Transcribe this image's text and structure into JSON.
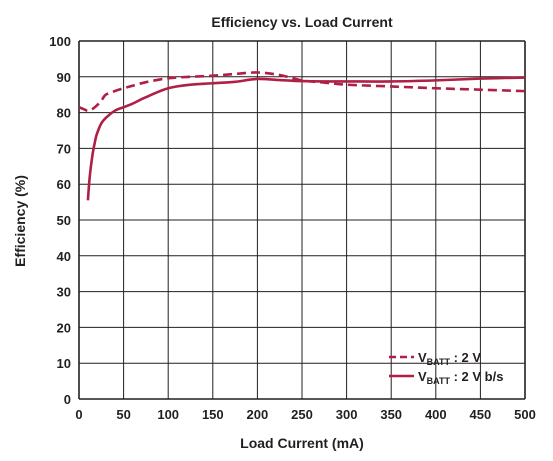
{
  "chart_data": {
    "type": "line",
    "title": "Efficiency vs. Load Current",
    "xlabel": "Load Current (mA)",
    "ylabel": "Efficiency (%)",
    "xlim": [
      0,
      500
    ],
    "ylim": [
      0,
      100
    ],
    "xticks": [
      0,
      50,
      100,
      150,
      200,
      250,
      300,
      350,
      400,
      450,
      500
    ],
    "yticks": [
      0,
      10,
      20,
      30,
      40,
      50,
      60,
      70,
      80,
      90,
      100
    ],
    "grid": true,
    "legend_position": "bottom-right",
    "colors": {
      "series": "#b01f46",
      "grid": "#231f20",
      "text": "#231f20"
    },
    "series": [
      {
        "name": "VBATT : 2 V",
        "legend_main": "V",
        "legend_sub": "BATT",
        "legend_suffix": " : 2 V",
        "style": "dashed",
        "x": [
          0,
          5,
          10,
          15,
          20,
          25,
          30,
          40,
          50,
          60,
          75,
          100,
          125,
          150,
          175,
          200,
          225,
          250,
          275,
          300,
          350,
          400,
          450,
          500
        ],
        "y": [
          81.5,
          81,
          80.5,
          81,
          82,
          83.3,
          85,
          86,
          86.8,
          87.5,
          88.5,
          89.6,
          90,
          90.3,
          90.8,
          91.2,
          90.5,
          89,
          88.4,
          87.8,
          87.3,
          86.8,
          86.4,
          86
        ]
      },
      {
        "name": "VBATT : 2 V b/s",
        "legend_main": "V",
        "legend_sub": "BATT",
        "legend_suffix": " : 2 V b/s",
        "style": "solid",
        "x": [
          10,
          12,
          15,
          18,
          20,
          25,
          30,
          40,
          50,
          60,
          75,
          100,
          125,
          150,
          175,
          200,
          225,
          250,
          275,
          300,
          350,
          400,
          450,
          500
        ],
        "y": [
          55.5,
          62,
          68,
          72,
          74,
          77,
          78.5,
          80.5,
          81.5,
          82.5,
          84.3,
          86.8,
          87.8,
          88.2,
          88.6,
          89.4,
          89.1,
          88.8,
          88.7,
          88.7,
          88.7,
          89,
          89.5,
          89.8
        ]
      }
    ]
  }
}
